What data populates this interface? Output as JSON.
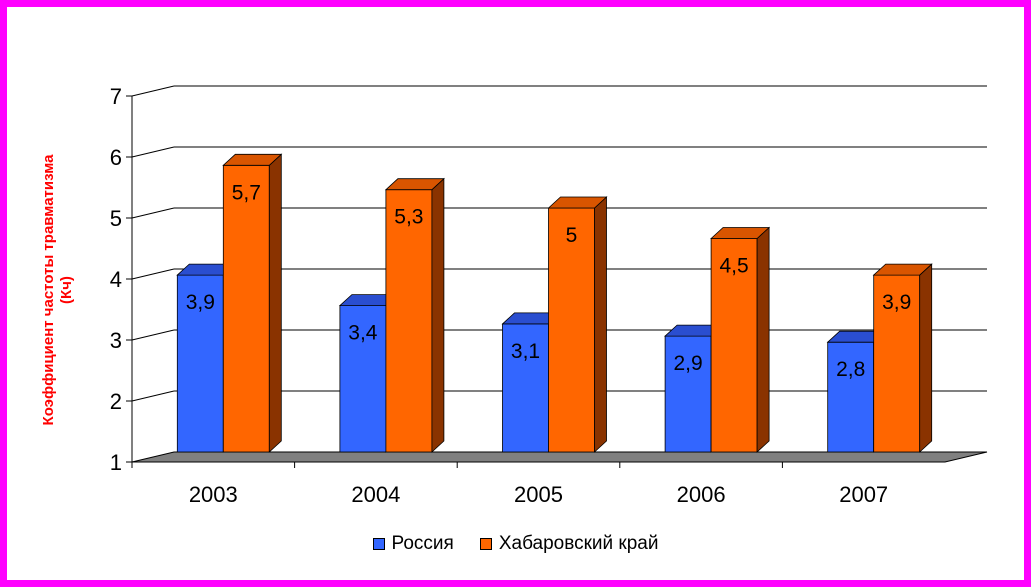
{
  "chart_data": {
    "type": "bar",
    "title": "",
    "xlabel": "",
    "ylabel": "Коэффициент частоты травматизма\n(Кч)",
    "categories": [
      "2003",
      "2004",
      "2005",
      "2006",
      "2007"
    ],
    "ylim": [
      1,
      7
    ],
    "yticks": [
      "1",
      "2",
      "3",
      "4",
      "5",
      "6",
      "7"
    ],
    "grid": true,
    "three_d": true,
    "legend_position": "bottom",
    "series": [
      {
        "name": "Россия",
        "values": [
          3.9,
          3.4,
          3.1,
          2.9,
          2.8
        ],
        "data_labels": [
          "3,9",
          "3,4",
          "3,1",
          "2,9",
          "2,8"
        ],
        "color": "#3366ff",
        "side_color": "#1a2e99",
        "top_color": "#2a4ed0"
      },
      {
        "name": "Хабаровский край",
        "values": [
          5.7,
          5.3,
          5,
          4.5,
          3.9
        ],
        "data_labels": [
          "5,7",
          "5,3",
          "5",
          "4,5",
          "3,9"
        ],
        "color": "#ff6600",
        "side_color": "#8a3300",
        "top_color": "#d95500"
      }
    ]
  },
  "colors": {
    "frame": "#ff00ff",
    "floor": "#808080",
    "ylabel": "#ff0000"
  }
}
